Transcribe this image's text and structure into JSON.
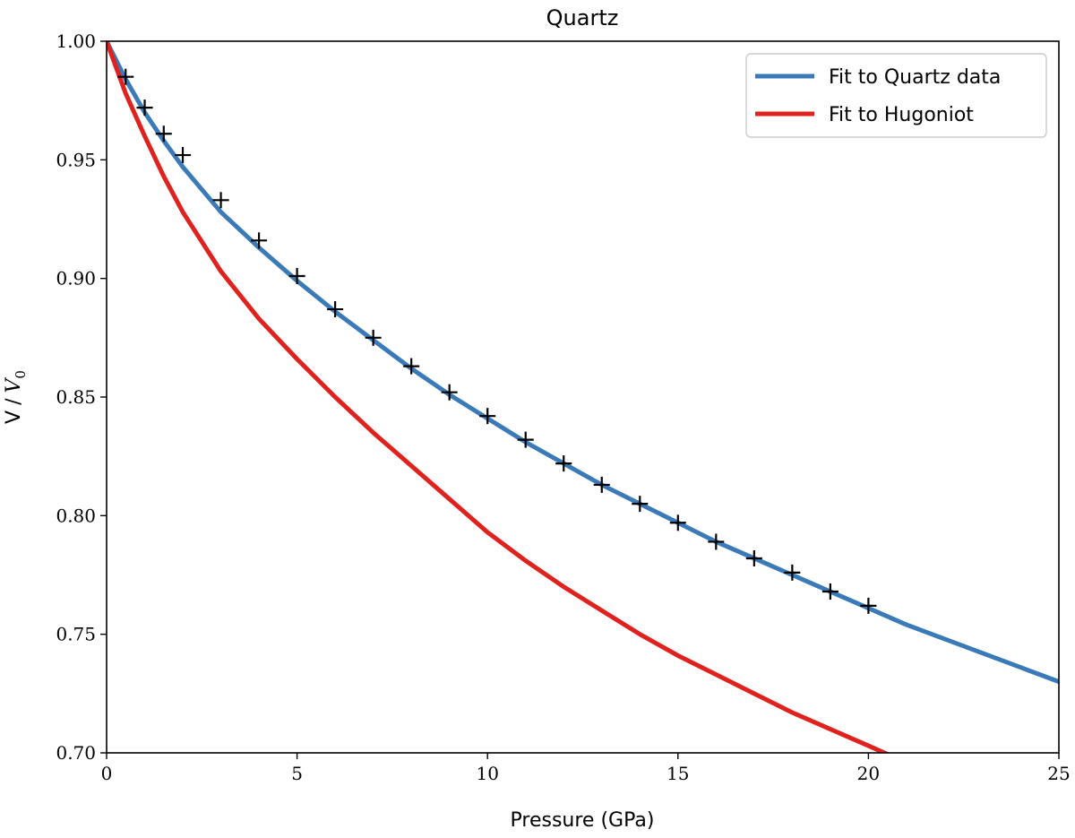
{
  "chart_data": {
    "type": "line",
    "title": "Quartz",
    "xlabel": "Pressure (GPa)",
    "ylabel": "V / V0",
    "ylabel_main": "V",
    "ylabel_sep": "/",
    "ylabel_sym": "V",
    "ylabel_sub": "0",
    "xlim": [
      0,
      25
    ],
    "ylim": [
      0.7,
      1.0
    ],
    "xticks": [
      0,
      5,
      10,
      15,
      20,
      25
    ],
    "xtick_labels": [
      "0",
      "5",
      "10",
      "15",
      "20",
      "25"
    ],
    "yticks": [
      0.7,
      0.75,
      0.8,
      0.85,
      0.9,
      0.95,
      1.0
    ],
    "ytick_labels": [
      "0.70",
      "0.75",
      "0.80",
      "0.85",
      "0.90",
      "0.95",
      "1.00"
    ],
    "grid": false,
    "legend_position": "top-right",
    "series": [
      {
        "name": "Fit to Quartz data",
        "color": "#3a7ab8",
        "style": "line",
        "x": [
          0,
          0.5,
          1,
          1.5,
          2,
          3,
          4,
          5,
          6,
          7,
          8,
          9,
          10,
          11,
          12,
          13,
          14,
          15,
          16,
          17,
          18,
          19,
          20,
          21,
          22,
          23,
          24,
          25
        ],
        "y": [
          1.0,
          0.984,
          0.97,
          0.958,
          0.947,
          0.928,
          0.913,
          0.899,
          0.886,
          0.874,
          0.862,
          0.851,
          0.841,
          0.831,
          0.822,
          0.813,
          0.805,
          0.797,
          0.789,
          0.782,
          0.775,
          0.768,
          0.761,
          0.754,
          0.748,
          0.742,
          0.736,
          0.73
        ]
      },
      {
        "name": "Fit to Hugoniot",
        "color": "#e0221e",
        "style": "line",
        "x": [
          0,
          0.5,
          1,
          1.5,
          2,
          3,
          4,
          5,
          6,
          7,
          8,
          9,
          10,
          11,
          12,
          13,
          14,
          15,
          16,
          17,
          18,
          19,
          20,
          20.7
        ],
        "y": [
          1.0,
          0.978,
          0.96,
          0.943,
          0.928,
          0.903,
          0.883,
          0.866,
          0.85,
          0.835,
          0.821,
          0.807,
          0.793,
          0.781,
          0.77,
          0.76,
          0.75,
          0.741,
          0.733,
          0.725,
          0.717,
          0.71,
          0.703,
          0.698
        ]
      },
      {
        "name": "Quartz data",
        "color": "#000000",
        "style": "marker-plus",
        "x": [
          0.5,
          1,
          1.5,
          2,
          3,
          4,
          5,
          6,
          7,
          8,
          9,
          10,
          11,
          12,
          13,
          14,
          15,
          16,
          17,
          18,
          19,
          20
        ],
        "y": [
          0.985,
          0.972,
          0.961,
          0.952,
          0.933,
          0.916,
          0.901,
          0.887,
          0.875,
          0.863,
          0.852,
          0.842,
          0.832,
          0.822,
          0.813,
          0.805,
          0.797,
          0.789,
          0.782,
          0.776,
          0.768,
          0.762
        ]
      }
    ]
  }
}
